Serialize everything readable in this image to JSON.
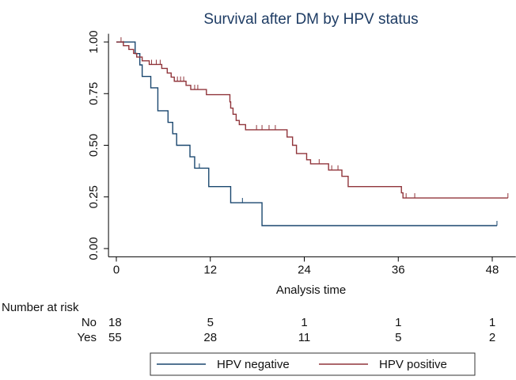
{
  "chart_data": {
    "type": "step",
    "title": "Survival after DM by HPV status",
    "x_label": "Analysis time",
    "xlim": [
      -1,
      51
    ],
    "ylim": [
      -0.04,
      1.04
    ],
    "xticks": [
      0,
      12,
      24,
      36,
      48
    ],
    "yticks": [
      {
        "value": 0,
        "label": "0.00"
      },
      {
        "value": 0.25,
        "label": "0.25"
      },
      {
        "value": 0.5,
        "label": "0.50"
      },
      {
        "value": 0.75,
        "label": "0.75"
      },
      {
        "value": 1,
        "label": "1.00"
      }
    ],
    "series": [
      {
        "name": "HPV negative",
        "color": "#1a476f",
        "x": [
          0,
          2.4,
          3.0,
          3.3,
          4.4,
          5.3,
          6.6,
          7.2,
          7.7,
          9.4,
          10.0,
          11.8,
          14.6,
          18.6,
          48.6
        ],
        "values": [
          1,
          0.944,
          0.889,
          0.833,
          0.778,
          0.667,
          0.611,
          0.556,
          0.5,
          0.444,
          0.389,
          0.3,
          0.222,
          0.111,
          0.111
        ],
        "censored": [
          10.6,
          16.1,
          48.6
        ]
      },
      {
        "name": "HPV positive",
        "color": "#90353b",
        "x": [
          0,
          0.9,
          1.6,
          2.2,
          2.6,
          3.3,
          4.2,
          5.8,
          6.5,
          7.0,
          7.4,
          8.9,
          9.5,
          11.5,
          14.5,
          14.6,
          14.9,
          15.3,
          15.7,
          16.5,
          21.8,
          22.5,
          23.0,
          24.3,
          24.8,
          27.1,
          28.8,
          29.6,
          36.4,
          36.6,
          50.0
        ],
        "values": [
          1,
          0.982,
          0.964,
          0.945,
          0.927,
          0.909,
          0.891,
          0.872,
          0.85,
          0.83,
          0.81,
          0.79,
          0.77,
          0.745,
          0.71,
          0.68,
          0.65,
          0.62,
          0.6,
          0.575,
          0.54,
          0.5,
          0.46,
          0.43,
          0.41,
          0.38,
          0.35,
          0.3,
          0.27,
          0.245,
          0.245
        ],
        "censored": [
          0.6,
          0.9,
          4.5,
          5.1,
          5.6,
          7.8,
          8.2,
          8.6,
          10.0,
          10.4,
          17.9,
          18.6,
          19.5,
          20.3,
          25.9,
          27.5,
          28.3,
          37.0,
          38.1,
          50.0
        ]
      }
    ],
    "risk_table": {
      "title": "Number at risk",
      "rows": [
        {
          "label": "No",
          "values": [
            18,
            5,
            1,
            1,
            1
          ]
        },
        {
          "label": "Yes",
          "values": [
            55,
            28,
            11,
            5,
            2
          ]
        }
      ]
    }
  }
}
